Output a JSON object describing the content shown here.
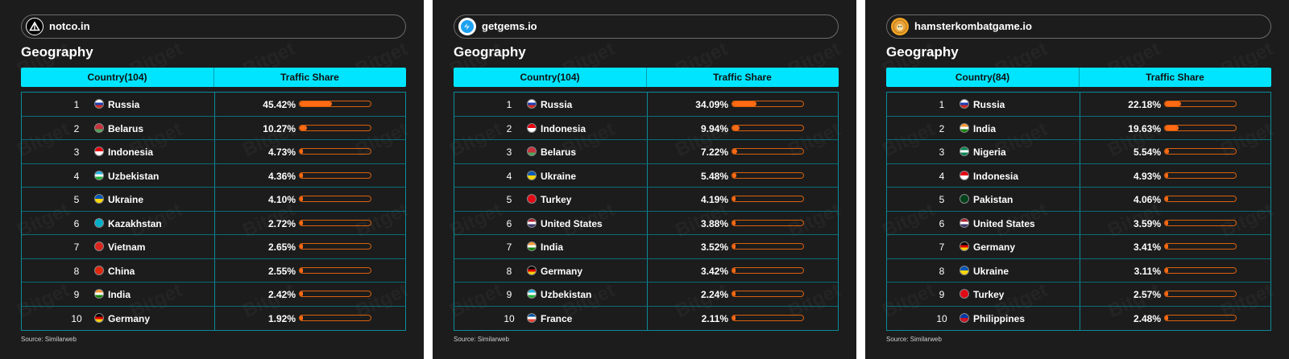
{
  "panels": [
    {
      "site": "notco.in",
      "title": "Geography",
      "col_country": "Country(104)",
      "col_share": "Traffic Share",
      "source": "Source: Similarweb",
      "icon": "notcoin-triangle-icon"
    },
    {
      "site": "getgems.io",
      "title": "Geography",
      "col_country": "Country(104)",
      "col_share": "Traffic Share",
      "source": "Source: Similarweb",
      "icon": "getgems-logo-icon"
    },
    {
      "site": "hamsterkombatgame.io",
      "title": "Geography",
      "col_country": "Country(84)",
      "col_share": "Traffic Share",
      "source": "Source: Similarweb",
      "icon": "hamster-coin-icon"
    }
  ],
  "chart_data": [
    {
      "type": "table",
      "title": "notco.in",
      "ranks": [
        1,
        2,
        3,
        4,
        5,
        6,
        7,
        8,
        9,
        10
      ],
      "categories": [
        "Russia",
        "Belarus",
        "Indonesia",
        "Uzbekistan",
        "Ukraine",
        "Kazakhstan",
        "Vietnam",
        "China",
        "India",
        "Germany"
      ],
      "values": [
        45.42,
        10.27,
        4.73,
        4.36,
        4.1,
        2.72,
        2.65,
        2.55,
        2.42,
        1.92
      ],
      "labels": [
        "45.42%",
        "10.27%",
        "4.73%",
        "4.36%",
        "4.10%",
        "2.72%",
        "2.65%",
        "2.55%",
        "2.42%",
        "1.92%"
      ],
      "ylim": [
        0,
        100
      ]
    },
    {
      "type": "table",
      "title": "getgems.io",
      "ranks": [
        1,
        2,
        3,
        4,
        5,
        6,
        7,
        8,
        9,
        10
      ],
      "categories": [
        "Russia",
        "Indonesia",
        "Belarus",
        "Ukraine",
        "Turkey",
        "United States",
        "India",
        "Germany",
        "Uzbekistan",
        "France"
      ],
      "values": [
        34.09,
        9.94,
        7.22,
        5.48,
        4.19,
        3.88,
        3.52,
        3.42,
        2.24,
        2.11
      ],
      "labels": [
        "34.09%",
        "9.94%",
        "7.22%",
        "5.48%",
        "4.19%",
        "3.88%",
        "3.52%",
        "3.42%",
        "2.24%",
        "2.11%"
      ],
      "ylim": [
        0,
        100
      ]
    },
    {
      "type": "table",
      "title": "hamsterkombatgame.io",
      "ranks": [
        1,
        2,
        3,
        4,
        5,
        6,
        7,
        8,
        9,
        10
      ],
      "categories": [
        "Russia",
        "India",
        "Nigeria",
        "Indonesia",
        "Pakistan",
        "United States",
        "Germany",
        "Ukraine",
        "Turkey",
        "Philippines"
      ],
      "values": [
        22.18,
        19.63,
        5.54,
        4.93,
        4.06,
        3.59,
        3.41,
        3.11,
        2.57,
        2.48
      ],
      "labels": [
        "22.18%",
        "19.63%",
        "5.54%",
        "4.93%",
        "4.06%",
        "3.59%",
        "3.41%",
        "3.11%",
        "2.57%",
        "2.48%"
      ],
      "ylim": [
        0,
        100
      ]
    }
  ],
  "colors": {
    "panel_bg": "#1c1c1c",
    "header_bg": "#00e5ff",
    "bar_fill": "#ff6a13",
    "grid_line": "#0a6d79"
  },
  "flags": {
    "Russia": [
      "#ffffff",
      "#1c3fb4",
      "#d52b1e"
    ],
    "Belarus": [
      "#c8313e",
      "#c8313e",
      "#4aa657"
    ],
    "Indonesia": [
      "#e70011",
      "#ffffff"
    ],
    "Uzbekistan": [
      "#1eb5e6",
      "#ffffff",
      "#1eb53a"
    ],
    "Ukraine": [
      "#0057b7",
      "#ffd700"
    ],
    "Kazakhstan": [
      "#00afca",
      "#00afca"
    ],
    "Vietnam": [
      "#da251d",
      "#da251d"
    ],
    "China": [
      "#de2910",
      "#de2910"
    ],
    "India": [
      "#ff9933",
      "#ffffff",
      "#138808"
    ],
    "Germany": [
      "#000000",
      "#dd0000",
      "#ffce00"
    ],
    "Turkey": [
      "#e30a17",
      "#e30a17"
    ],
    "United States": [
      "#b22234",
      "#ffffff",
      "#3c3b6e"
    ],
    "France": [
      "#0055a4",
      "#ffffff",
      "#ef4135"
    ],
    "Nigeria": [
      "#008751",
      "#ffffff",
      "#008751"
    ],
    "Pakistan": [
      "#01411c",
      "#01411c"
    ],
    "Philippines": [
      "#0038a8",
      "#ce1126"
    ]
  }
}
